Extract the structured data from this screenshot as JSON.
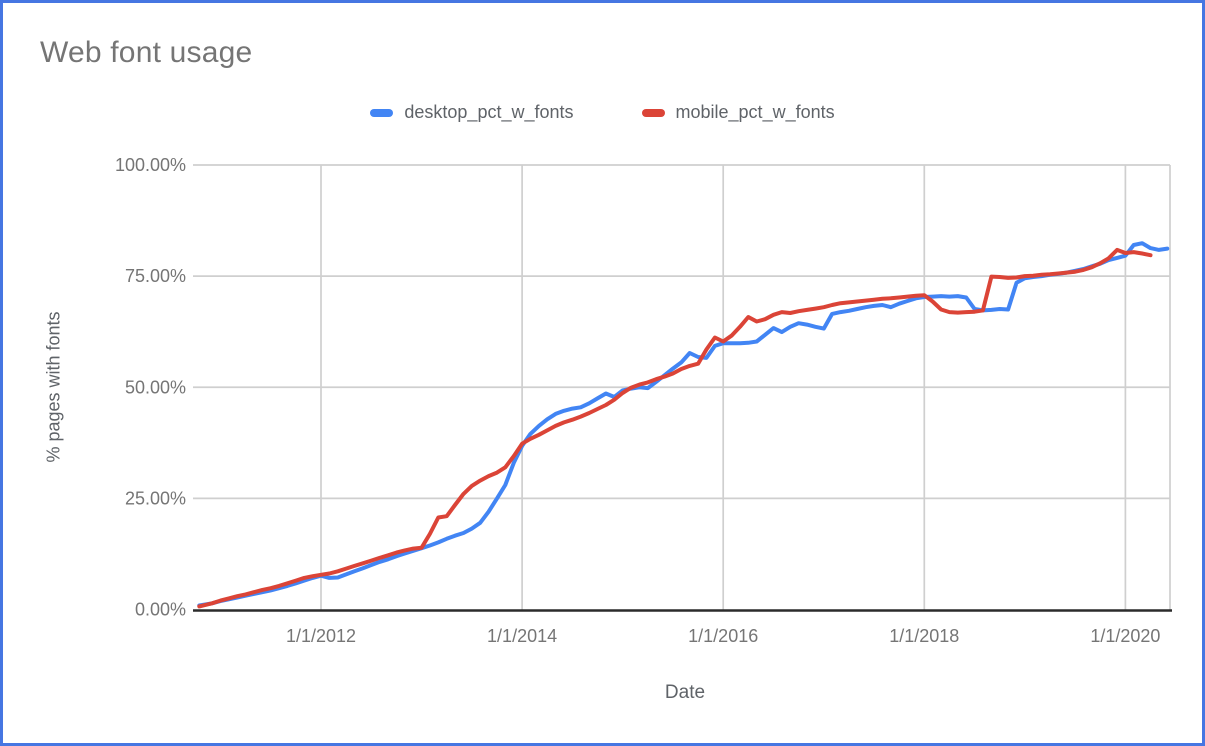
{
  "frame": {
    "border_color": "#4676e2",
    "background": "#ffffff"
  },
  "header": {
    "title": "Web font usage",
    "title_color": "#757575"
  },
  "chart_data": {
    "type": "line",
    "title": "Web font usage",
    "xlabel": "Date",
    "ylabel": "% pages with fonts",
    "x_unit": "decimal_year",
    "xlim": [
      2010.79,
      2020.44
    ],
    "ylim": [
      0,
      100
    ],
    "grid": true,
    "legend_position": "top",
    "colors": {
      "gridline": "#cfcfcf",
      "baseline": "#2b2b2b",
      "tick_label": "#757575",
      "axis_title": "#5f6368"
    },
    "y_ticks": [
      {
        "v": 0,
        "label": "0.00%"
      },
      {
        "v": 25,
        "label": "25.00%"
      },
      {
        "v": 50,
        "label": "50.00%"
      },
      {
        "v": 75,
        "label": "75.00%"
      },
      {
        "v": 100,
        "label": "100.00%"
      }
    ],
    "x_ticks": [
      {
        "v": 2012,
        "label": "1/1/2012"
      },
      {
        "v": 2014,
        "label": "1/1/2014"
      },
      {
        "v": 2016,
        "label": "1/1/2016"
      },
      {
        "v": 2018,
        "label": "1/1/2018"
      },
      {
        "v": 2020,
        "label": "1/1/2020"
      }
    ],
    "series": [
      {
        "name": "desktop_pct_w_fonts",
        "color": "#4285F4",
        "points": [
          [
            2010.79,
            0.9
          ],
          [
            2010.917,
            1.4
          ],
          [
            2011.0,
            1.9
          ],
          [
            2011.083,
            2.3
          ],
          [
            2011.167,
            2.7
          ],
          [
            2011.25,
            3.1
          ],
          [
            2011.333,
            3.5
          ],
          [
            2011.417,
            3.9
          ],
          [
            2011.5,
            4.3
          ],
          [
            2011.583,
            4.8
          ],
          [
            2011.667,
            5.3
          ],
          [
            2011.75,
            5.9
          ],
          [
            2011.833,
            6.5
          ],
          [
            2011.917,
            7.1
          ],
          [
            2012.0,
            7.6
          ],
          [
            2012.083,
            7.1
          ],
          [
            2012.167,
            7.2
          ],
          [
            2012.25,
            7.9
          ],
          [
            2012.333,
            8.6
          ],
          [
            2012.417,
            9.3
          ],
          [
            2012.5,
            10.0
          ],
          [
            2012.583,
            10.7
          ],
          [
            2012.667,
            11.3
          ],
          [
            2012.75,
            12.0
          ],
          [
            2012.833,
            12.6
          ],
          [
            2012.917,
            13.2
          ],
          [
            2013.0,
            13.8
          ],
          [
            2013.083,
            14.4
          ],
          [
            2013.167,
            15.1
          ],
          [
            2013.25,
            15.9
          ],
          [
            2013.333,
            16.6
          ],
          [
            2013.417,
            17.2
          ],
          [
            2013.5,
            18.2
          ],
          [
            2013.583,
            19.5
          ],
          [
            2013.667,
            22.0
          ],
          [
            2013.75,
            25.0
          ],
          [
            2013.833,
            28.0
          ],
          [
            2013.917,
            33.0
          ],
          [
            2014.0,
            36.8
          ],
          [
            2014.083,
            39.5
          ],
          [
            2014.167,
            41.3
          ],
          [
            2014.25,
            42.8
          ],
          [
            2014.333,
            44.0
          ],
          [
            2014.417,
            44.7
          ],
          [
            2014.5,
            45.2
          ],
          [
            2014.583,
            45.5
          ],
          [
            2014.667,
            46.4
          ],
          [
            2014.75,
            47.5
          ],
          [
            2014.833,
            48.6
          ],
          [
            2014.917,
            47.8
          ],
          [
            2015.0,
            49.3
          ],
          [
            2015.083,
            49.7
          ],
          [
            2015.167,
            50.0
          ],
          [
            2015.25,
            49.8
          ],
          [
            2015.333,
            51.2
          ],
          [
            2015.417,
            52.7
          ],
          [
            2015.5,
            54.2
          ],
          [
            2015.583,
            55.6
          ],
          [
            2015.667,
            57.7
          ],
          [
            2015.75,
            56.8
          ],
          [
            2015.833,
            56.6
          ],
          [
            2015.917,
            59.3
          ],
          [
            2016.0,
            59.9
          ],
          [
            2016.083,
            59.9
          ],
          [
            2016.167,
            59.9
          ],
          [
            2016.25,
            60.0
          ],
          [
            2016.333,
            60.3
          ],
          [
            2016.417,
            61.8
          ],
          [
            2016.5,
            63.3
          ],
          [
            2016.583,
            62.4
          ],
          [
            2016.667,
            63.6
          ],
          [
            2016.75,
            64.4
          ],
          [
            2016.833,
            64.1
          ],
          [
            2016.917,
            63.6
          ],
          [
            2017.0,
            63.2
          ],
          [
            2017.083,
            66.5
          ],
          [
            2017.167,
            66.9
          ],
          [
            2017.25,
            67.2
          ],
          [
            2017.333,
            67.6
          ],
          [
            2017.417,
            68.0
          ],
          [
            2017.5,
            68.3
          ],
          [
            2017.583,
            68.5
          ],
          [
            2017.667,
            68.0
          ],
          [
            2017.75,
            68.8
          ],
          [
            2017.833,
            69.4
          ],
          [
            2017.917,
            70.0
          ],
          [
            2018.0,
            70.3
          ],
          [
            2018.083,
            70.4
          ],
          [
            2018.167,
            70.5
          ],
          [
            2018.25,
            70.4
          ],
          [
            2018.333,
            70.5
          ],
          [
            2018.417,
            70.2
          ],
          [
            2018.5,
            67.6
          ],
          [
            2018.583,
            67.3
          ],
          [
            2018.667,
            67.4
          ],
          [
            2018.75,
            67.6
          ],
          [
            2018.833,
            67.5
          ],
          [
            2018.917,
            73.5
          ],
          [
            2019.0,
            74.5
          ],
          [
            2019.083,
            74.8
          ],
          [
            2019.167,
            75.0
          ],
          [
            2019.25,
            75.3
          ],
          [
            2019.333,
            75.5
          ],
          [
            2019.417,
            75.8
          ],
          [
            2019.5,
            76.2
          ],
          [
            2019.583,
            76.6
          ],
          [
            2019.667,
            77.2
          ],
          [
            2019.75,
            77.8
          ],
          [
            2019.833,
            78.6
          ],
          [
            2019.917,
            79.1
          ],
          [
            2020.0,
            79.6
          ],
          [
            2020.083,
            82.0
          ],
          [
            2020.167,
            82.4
          ],
          [
            2020.25,
            81.3
          ],
          [
            2020.333,
            80.9
          ],
          [
            2020.417,
            81.2
          ]
        ]
      },
      {
        "name": "mobile_pct_w_fonts",
        "color": "#DB4437",
        "points": [
          [
            2010.79,
            0.7
          ],
          [
            2010.917,
            1.4
          ],
          [
            2011.0,
            2.0
          ],
          [
            2011.083,
            2.5
          ],
          [
            2011.167,
            3.0
          ],
          [
            2011.25,
            3.4
          ],
          [
            2011.333,
            3.9
          ],
          [
            2011.417,
            4.4
          ],
          [
            2011.5,
            4.8
          ],
          [
            2011.583,
            5.3
          ],
          [
            2011.667,
            5.9
          ],
          [
            2011.75,
            6.5
          ],
          [
            2011.833,
            7.1
          ],
          [
            2011.917,
            7.5
          ],
          [
            2012.0,
            7.8
          ],
          [
            2012.083,
            8.1
          ],
          [
            2012.167,
            8.6
          ],
          [
            2012.25,
            9.2
          ],
          [
            2012.333,
            9.8
          ],
          [
            2012.417,
            10.4
          ],
          [
            2012.5,
            11.0
          ],
          [
            2012.583,
            11.6
          ],
          [
            2012.667,
            12.2
          ],
          [
            2012.75,
            12.8
          ],
          [
            2012.833,
            13.3
          ],
          [
            2012.917,
            13.7
          ],
          [
            2013.0,
            13.9
          ],
          [
            2013.083,
            17.0
          ],
          [
            2013.167,
            20.7
          ],
          [
            2013.25,
            21.0
          ],
          [
            2013.333,
            23.5
          ],
          [
            2013.417,
            26.0
          ],
          [
            2013.5,
            27.8
          ],
          [
            2013.583,
            29.0
          ],
          [
            2013.667,
            30.0
          ],
          [
            2013.75,
            30.8
          ],
          [
            2013.833,
            32.0
          ],
          [
            2013.917,
            34.5
          ],
          [
            2014.0,
            37.3
          ],
          [
            2014.083,
            38.4
          ],
          [
            2014.167,
            39.3
          ],
          [
            2014.25,
            40.3
          ],
          [
            2014.333,
            41.3
          ],
          [
            2014.417,
            42.1
          ],
          [
            2014.5,
            42.7
          ],
          [
            2014.583,
            43.4
          ],
          [
            2014.667,
            44.2
          ],
          [
            2014.75,
            45.1
          ],
          [
            2014.833,
            46.0
          ],
          [
            2014.917,
            47.2
          ],
          [
            2015.0,
            48.7
          ],
          [
            2015.083,
            49.9
          ],
          [
            2015.167,
            50.6
          ],
          [
            2015.25,
            51.1
          ],
          [
            2015.333,
            51.8
          ],
          [
            2015.417,
            52.4
          ],
          [
            2015.5,
            53.1
          ],
          [
            2015.583,
            54.1
          ],
          [
            2015.667,
            54.8
          ],
          [
            2015.75,
            55.3
          ],
          [
            2015.833,
            58.5
          ],
          [
            2015.917,
            61.2
          ],
          [
            2016.0,
            60.3
          ],
          [
            2016.083,
            61.6
          ],
          [
            2016.167,
            63.6
          ],
          [
            2016.25,
            65.8
          ],
          [
            2016.333,
            64.8
          ],
          [
            2016.417,
            65.3
          ],
          [
            2016.5,
            66.3
          ],
          [
            2016.583,
            66.9
          ],
          [
            2016.667,
            66.7
          ],
          [
            2016.75,
            67.1
          ],
          [
            2016.833,
            67.4
          ],
          [
            2016.917,
            67.7
          ],
          [
            2017.0,
            68.0
          ],
          [
            2017.083,
            68.5
          ],
          [
            2017.167,
            68.9
          ],
          [
            2017.25,
            69.1
          ],
          [
            2017.333,
            69.3
          ],
          [
            2017.417,
            69.5
          ],
          [
            2017.5,
            69.7
          ],
          [
            2017.583,
            69.9
          ],
          [
            2017.667,
            70.0
          ],
          [
            2017.75,
            70.2
          ],
          [
            2017.833,
            70.4
          ],
          [
            2017.917,
            70.6
          ],
          [
            2018.0,
            70.7
          ],
          [
            2018.083,
            69.3
          ],
          [
            2018.167,
            67.5
          ],
          [
            2018.25,
            66.9
          ],
          [
            2018.333,
            66.8
          ],
          [
            2018.417,
            66.9
          ],
          [
            2018.5,
            67.0
          ],
          [
            2018.583,
            67.3
          ],
          [
            2018.667,
            74.9
          ],
          [
            2018.75,
            74.8
          ],
          [
            2018.833,
            74.6
          ],
          [
            2018.917,
            74.7
          ],
          [
            2019.0,
            75.0
          ],
          [
            2019.083,
            75.1
          ],
          [
            2019.167,
            75.3
          ],
          [
            2019.25,
            75.4
          ],
          [
            2019.333,
            75.6
          ],
          [
            2019.417,
            75.8
          ],
          [
            2019.5,
            76.0
          ],
          [
            2019.583,
            76.4
          ],
          [
            2019.667,
            77.0
          ],
          [
            2019.75,
            77.9
          ],
          [
            2019.833,
            79.0
          ],
          [
            2019.917,
            80.9
          ],
          [
            2020.0,
            80.2
          ],
          [
            2020.083,
            80.4
          ],
          [
            2020.167,
            80.1
          ],
          [
            2020.25,
            79.7
          ]
        ]
      }
    ]
  }
}
